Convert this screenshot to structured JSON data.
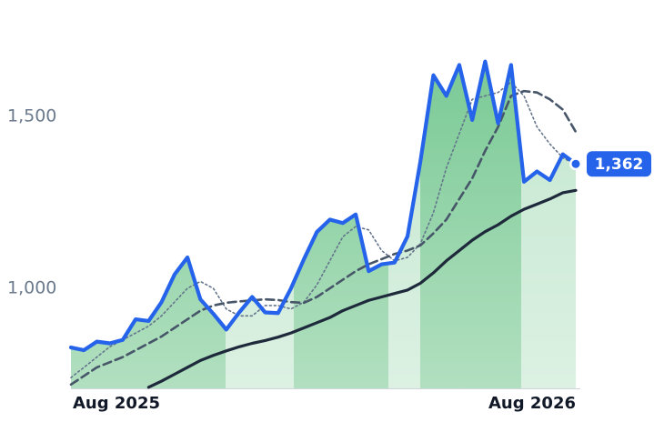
{
  "chart_data": {
    "type": "line",
    "xlim": [
      0,
      39
    ],
    "xticks": [
      {
        "value": 0,
        "label": "Aug 2025"
      },
      {
        "value": 39,
        "label": "Aug 2026"
      }
    ],
    "ylim": [
      709,
      1839
    ],
    "yticks": [
      {
        "value": 1000,
        "label": "1,000"
      },
      {
        "value": 1500,
        "label": "1,500"
      }
    ],
    "grid": false,
    "series": [
      {
        "color": "#64748b",
        "style": "dotted",
        "values": [
          740,
          770,
          800,
          830,
          850,
          870,
          890,
          920,
          960,
          1000,
          1020,
          1000,
          940,
          920,
          920,
          950,
          950,
          940,
          960,
          1010,
          1080,
          1150,
          1180,
          1170,
          1110,
          1080,
          1090,
          1130,
          1220,
          1350,
          1450,
          1550,
          1560,
          1570,
          1600,
          1560,
          1470,
          1420,
          1380,
          1360
        ]
      },
      {
        "color": "#475569",
        "style": "dashed",
        "values": [
          720,
          745,
          770,
          785,
          800,
          820,
          840,
          860,
          885,
          910,
          935,
          950,
          958,
          962,
          965,
          968,
          966,
          960,
          958,
          975,
          1000,
          1025,
          1050,
          1070,
          1085,
          1100,
          1110,
          1125,
          1160,
          1200,
          1260,
          1320,
          1400,
          1470,
          1560,
          1574,
          1570,
          1550,
          1520,
          1455
        ]
      },
      {
        "color": "#1e293b",
        "style": "solid",
        "values": [
          null,
          null,
          null,
          null,
          null,
          null,
          712,
          730,
          750,
          770,
          790,
          805,
          818,
          830,
          840,
          848,
          858,
          870,
          885,
          900,
          915,
          935,
          950,
          965,
          975,
          985,
          995,
          1015,
          1045,
          1080,
          1110,
          1140,
          1165,
          1185,
          1210,
          1230,
          1245,
          1260,
          1278,
          1285
        ]
      },
      {
        "color": "#2563eb",
        "style": "price",
        "area_color": "#86cf9c",
        "values": [
          828,
          820,
          845,
          840,
          850,
          910,
          905,
          960,
          1040,
          1090,
          968,
          926,
          880,
          930,
          975,
          930,
          928,
          1000,
          1085,
          1164,
          1200,
          1190,
          1215,
          1050,
          1070,
          1075,
          1151,
          1370,
          1620,
          1560,
          1650,
          1490,
          1660,
          1480,
          1650,
          1310,
          1340,
          1315,
          1390,
          1362
        ]
      }
    ],
    "annotations": [
      {
        "text": "1,362",
        "y": 1362,
        "color": "#2563eb"
      }
    ]
  }
}
